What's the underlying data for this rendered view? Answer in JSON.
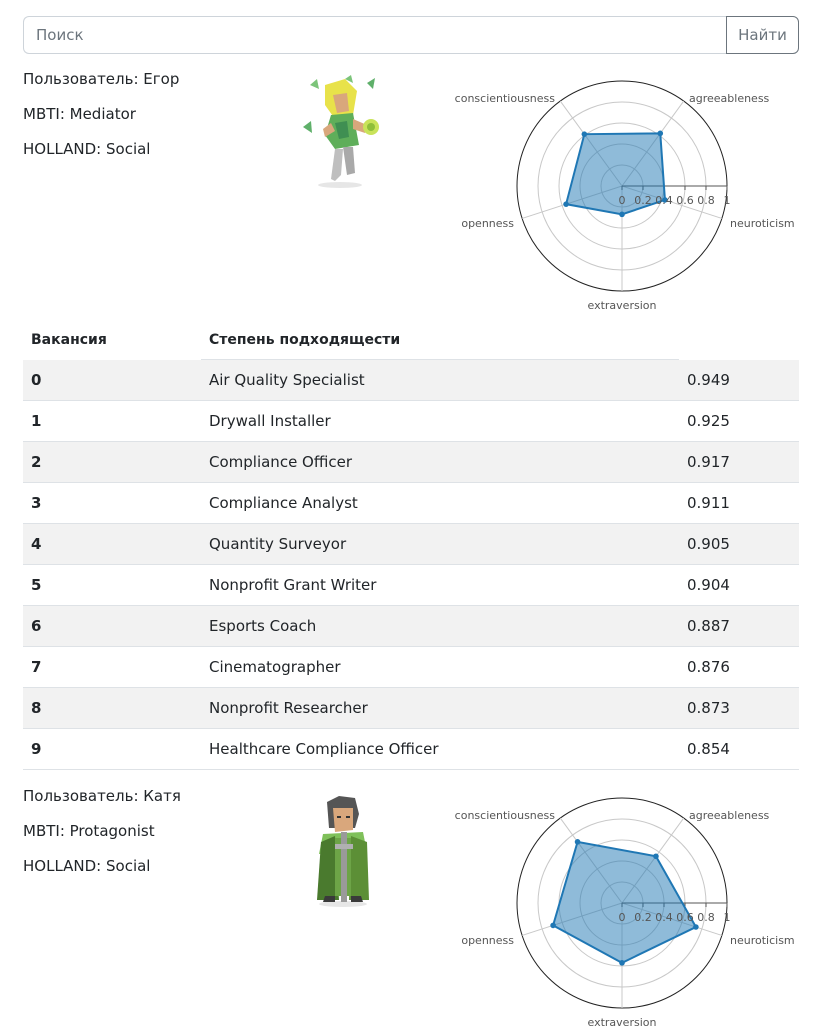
{
  "search": {
    "placeholder": "Поиск",
    "button_label": "Найти"
  },
  "radar_axes": [
    "neuroticism",
    "agreeableness",
    "conscientiousness",
    "openness",
    "extraversion"
  ],
  "radar_ticks": [
    "0",
    "0.2",
    "0.4",
    "0.6",
    "0.8",
    "1"
  ],
  "colors": {
    "radar_fill": "#1f77b4",
    "radar_line": "#1f77b4",
    "row_stripe": "#f2f2f2"
  },
  "users": [
    {
      "name_line": "Пользователь: Егор",
      "mbti_line": "MBTI: Mediator",
      "holland_line": "HOLLAND: Social",
      "avatar_icon": "mediator-character-icon",
      "traits": {
        "neuroticism": 0.43,
        "agreeableness": 0.62,
        "conscientiousness": 0.61,
        "openness": 0.56,
        "extraversion": 0.27
      }
    },
    {
      "name_line": "Пользователь: Катя",
      "mbti_line": "MBTI: Protagonist",
      "holland_line": "HOLLAND: Social",
      "avatar_icon": "protagonist-character-icon",
      "traits": {
        "neuroticism": 0.74,
        "agreeableness": 0.55,
        "conscientiousness": 0.72,
        "openness": 0.69,
        "extraversion": 0.57
      }
    }
  ],
  "table": {
    "headers": [
      "Вакансия",
      "Степень подходящести"
    ],
    "rows": [
      {
        "index": "0",
        "job": "Air Quality Specialist",
        "score": "0.949"
      },
      {
        "index": "1",
        "job": "Drywall Installer",
        "score": "0.925"
      },
      {
        "index": "2",
        "job": "Compliance Officer",
        "score": "0.917"
      },
      {
        "index": "3",
        "job": "Compliance Analyst",
        "score": "0.911"
      },
      {
        "index": "4",
        "job": "Quantity Surveyor",
        "score": "0.905"
      },
      {
        "index": "5",
        "job": "Nonprofit Grant Writer",
        "score": "0.904"
      },
      {
        "index": "6",
        "job": "Esports Coach",
        "score": "0.887"
      },
      {
        "index": "7",
        "job": "Cinematographer",
        "score": "0.876"
      },
      {
        "index": "8",
        "job": "Nonprofit Researcher",
        "score": "0.873"
      },
      {
        "index": "9",
        "job": "Healthcare Compliance Officer",
        "score": "0.854"
      }
    ]
  }
}
